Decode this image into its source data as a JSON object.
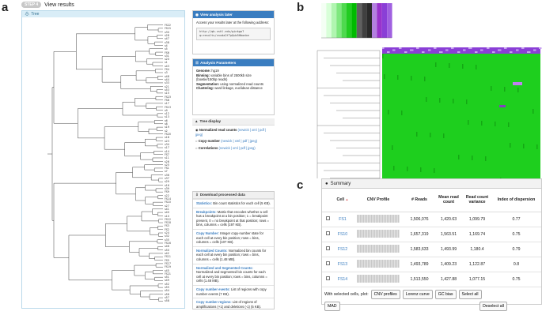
{
  "panel_letters": {
    "a": "a",
    "b": "b",
    "c": "c"
  },
  "header": {
    "step_badge": "STEP 4",
    "title": "View results"
  },
  "tree_panel": {
    "title": "Tree",
    "leaves": [
      "FS22",
      "FS15",
      "s30",
      "s28",
      "s47",
      "s38",
      "s4",
      "s5",
      "FS6",
      "s31",
      "s20",
      "s1",
      "s43",
      "FS4",
      "s3",
      "s48",
      "s44",
      "s33",
      "s21",
      "s53",
      "s15",
      "FS23",
      "FS8",
      "s17",
      "FS13",
      "s9",
      "s12",
      "s13",
      "s6",
      "s8",
      "s19",
      "s2",
      "FS20",
      "s18",
      "s23",
      "s34",
      "s17",
      "s14",
      "FS7",
      "s11",
      "s26",
      "s25",
      "FS1",
      "s7",
      "s36",
      "s37",
      "s29",
      "s16",
      "s39",
      "FS9",
      "s22",
      "FS14",
      "FS10",
      "s27",
      "s41",
      "s40",
      "s10",
      "FS12",
      "FS18",
      "FS3",
      "FS2",
      "s24",
      "s32",
      "s35",
      "FS16",
      "s46",
      "s50",
      "s42",
      "FS11",
      "FS5",
      "FS17",
      "FS19",
      "s45",
      "FS21",
      "s51",
      "s49",
      "s52",
      "s55",
      "s54",
      "s56",
      "s57",
      "s58"
    ]
  },
  "analysis_later": {
    "title": "View analysis later",
    "text": "Access your results later at the following address:",
    "url_lines": [
      "http://qb.cshl.edu/ginkgo?",
      "q=results/cnxda2f7pQub5Hbonbe"
    ]
  },
  "analysis_params": {
    "title": "Analysis Parameters",
    "items": [
      {
        "label": "Genome:",
        "value": "hg19"
      },
      {
        "label": "Binning:",
        "value": "variable bins of 2500kb size (bowtie/150bp reads)"
      },
      {
        "label": "Segmentation:",
        "value": "using normalized read counts"
      },
      {
        "label": "Clustering:",
        "value": "ward linkage, euclidean distance"
      }
    ]
  },
  "tree_display": {
    "title": "Tree display",
    "items": [
      {
        "label": "Normalized read counts",
        "links": "(newick | xml | pdf | jpeg)"
      },
      {
        "label": "Copy-number",
        "links": "(newick | xml | pdf | jpeg)"
      },
      {
        "label": "Correlations",
        "links": "(newick | xml | pdf | jpeg)"
      }
    ]
  },
  "downloads": {
    "title": "Download processed data",
    "items": [
      {
        "title": "Statistics:",
        "text": "Bin count statistics for each cell (5 KB)."
      },
      {
        "title": "Breakpoints:",
        "text": "Matrix that encodes whether a cell has a breakpoint at a bin position; 1 = breakpoint present, 0 = no breakpoint at that position; rows = bins, columns = cells (197 KB)."
      },
      {
        "title": "Copy Number:",
        "text": "Integer copy-number state for each cell at every bin position; rows = bins, columns = cells (107 KB)."
      },
      {
        "title": "Normalized Counts:",
        "text": "Normalized bin counts for each cell at every bin position; rows = bins, columns = cells (1.48 MB)."
      },
      {
        "title": "Normalized and Segmented Counts:",
        "text": "Normalized and segmented bin counts for each cell at every bin position; rows = bins, columns = cells (1.48 MB)."
      },
      {
        "title": "Copy number events:",
        "text": "List of regions with copy number events (7 KB)."
      },
      {
        "title": "Copy number regions:",
        "text": "List of regions of amplifications (+1) and deletions (-1) (5 KB)."
      }
    ]
  },
  "heatmap": {
    "colors": {
      "key_light": "#ccffcc",
      "key_green": "#00d000",
      "key_dark": "#404040",
      "key_purple": "#9933cc",
      "body_green": "#1ecf1e",
      "body_purple": "#8a3fd6"
    }
  },
  "summary": {
    "title": "Summary",
    "columns": [
      "Cell",
      "CNV Profile",
      "# Reads",
      "Mean read count",
      "Read count variance",
      "Index of dispersion"
    ],
    "rows": [
      {
        "cell": "FS1",
        "reads": "1,506,076",
        "mean": "1,420.63",
        "variance": "1,099.79",
        "dispersion": "0.77"
      },
      {
        "cell": "FS10",
        "reads": "1,657,319",
        "mean": "1,563.51",
        "variance": "1,169.74",
        "dispersion": "0.75"
      },
      {
        "cell": "FS12",
        "reads": "1,583,633",
        "mean": "1,493.99",
        "variance": "1,180.4",
        "dispersion": "0.79"
      },
      {
        "cell": "FS13",
        "reads": "1,493,789",
        "mean": "1,409.23",
        "variance": "1,122.87",
        "dispersion": "0.8"
      },
      {
        "cell": "FS14",
        "reads": "1,513,550",
        "mean": "1,427.88",
        "variance": "1,077.15",
        "dispersion": "0.75"
      }
    ],
    "plot_label": "With selected cells, plot:",
    "buttons": {
      "cnv": "CNV profiles",
      "lorenz": "Lorenz curve",
      "gc": "GC bias",
      "mad": "MAD",
      "select_all": "Select all",
      "deselect_all": "Deselect all"
    }
  }
}
